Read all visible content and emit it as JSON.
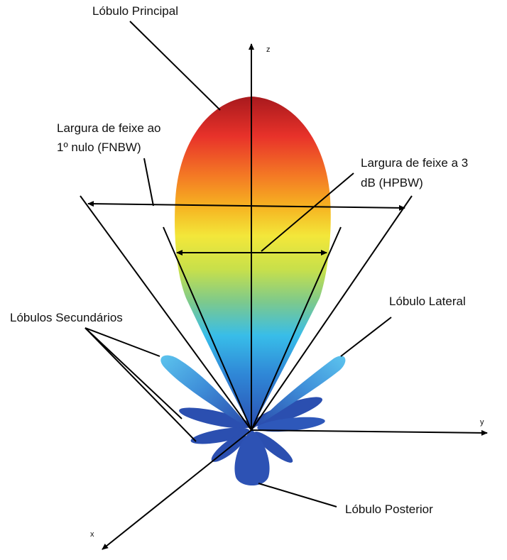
{
  "labels": {
    "main_lobe": "Lóbulo Principal",
    "fnbw_line1": "Largura de feixe ao",
    "fnbw_line2": "1º nulo (FNBW)",
    "hpbw_line1": "Largura de feixe a 3",
    "hpbw_line2": "dB (HPBW)",
    "side_lobe": "Lóbulo Lateral",
    "minor_lobes": "Lóbulos Secundários",
    "back_lobe": "Lóbulo Posterior"
  },
  "axes": {
    "z": "z",
    "y": "y",
    "x": "x"
  },
  "colors": {
    "main_top": "#b81f22",
    "main_red": "#e8322a",
    "main_orange": "#f7941d",
    "main_yellow": "#f4e33a",
    "main_green": "#9bd06a",
    "main_cyan": "#36b8e8",
    "main_blue": "#2c63c4",
    "lobe_blue": "#2b4fb0",
    "lobe_light": "#56c0ec"
  }
}
